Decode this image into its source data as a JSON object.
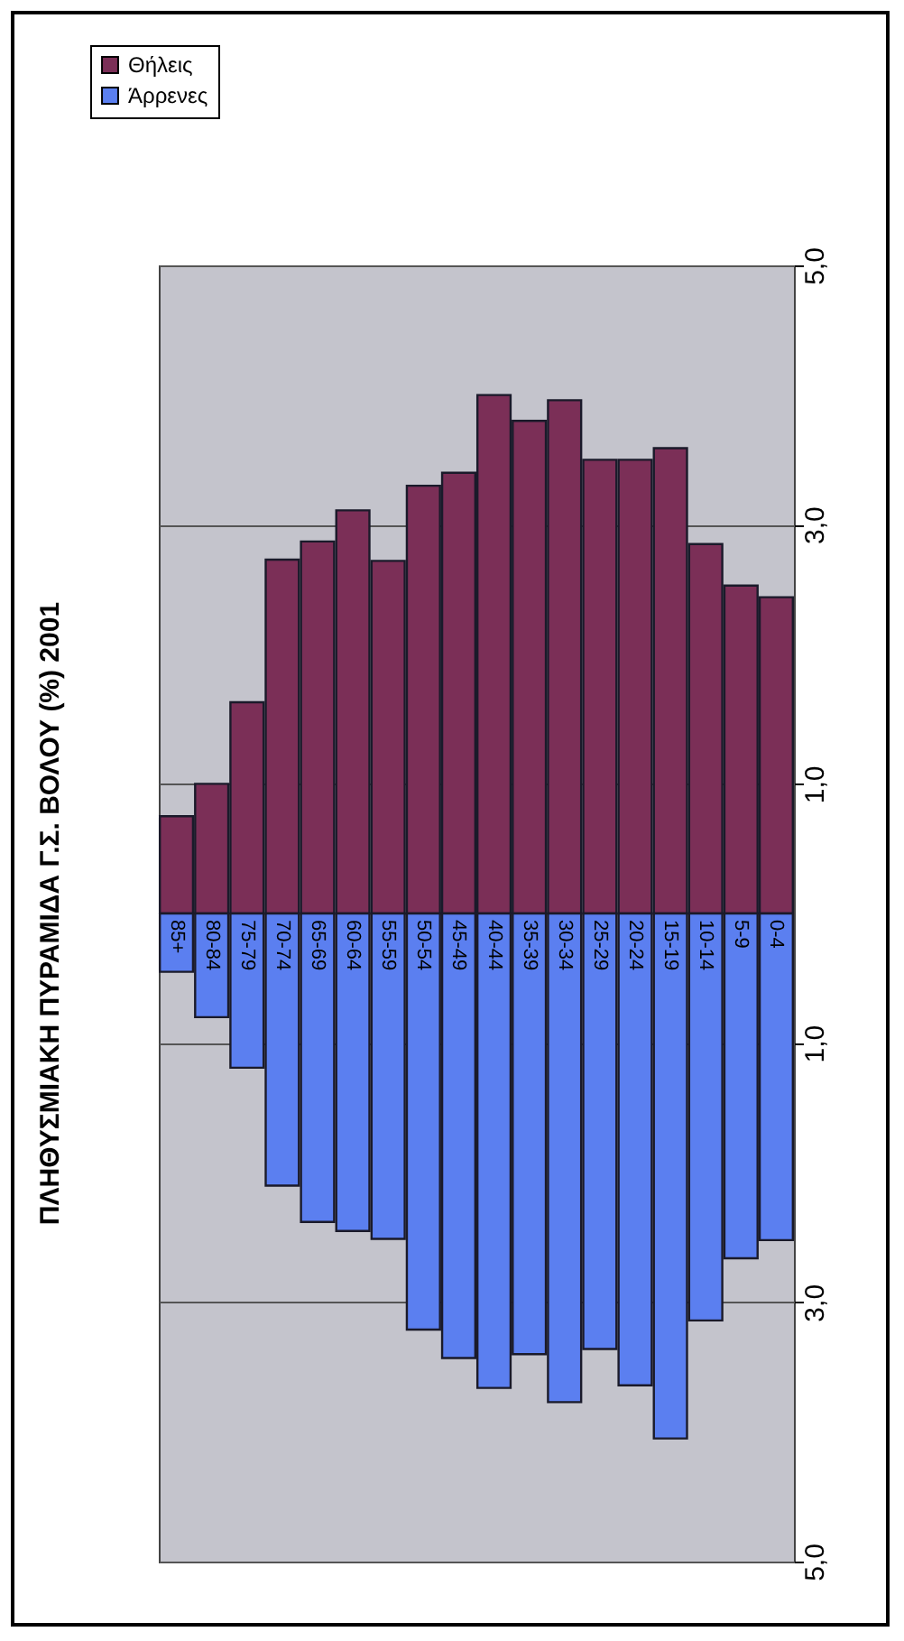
{
  "chart_data": {
    "type": "bar",
    "title": "ΠΛΗΘΥΣΜΙΑΚΗ ΠΥΡΑΜΙΔΑ Γ.Σ. ΒΟΛΟΥ (%) 2001",
    "categories": [
      "85+",
      "80-84",
      "75-79",
      "70-74",
      "65-69",
      "60-64",
      "55-59",
      "50-54",
      "45-49",
      "40-44",
      "35-39",
      "30-34",
      "25-29",
      "20-24",
      "15-19",
      "10-14",
      "5-9",
      "0-4"
    ],
    "series": [
      {
        "name": "Θήλεις",
        "color": "#7b2f57",
        "values": [
          0.75,
          1.0,
          1.63,
          2.73,
          2.87,
          3.11,
          2.72,
          3.3,
          3.4,
          4.0,
          3.8,
          3.96,
          3.5,
          3.5,
          3.59,
          2.85,
          2.53,
          2.44
        ]
      },
      {
        "name": "Άρρενες",
        "color": "#5b7ff0",
        "values": [
          -0.45,
          -0.8,
          -1.19,
          -2.1,
          -2.38,
          -2.45,
          -2.51,
          -3.21,
          -3.43,
          -3.66,
          -3.4,
          -3.77,
          -3.36,
          -3.64,
          -4.05,
          -3.14,
          -2.66,
          -2.52
        ]
      }
    ],
    "ylim": [
      -5,
      5
    ],
    "yticks": [
      {
        "value": -5,
        "label": "5,0"
      },
      {
        "value": -3,
        "label": "3,0"
      },
      {
        "value": -1,
        "label": "1,0"
      },
      {
        "value": 1,
        "label": "1,0"
      },
      {
        "value": 3,
        "label": "3,0"
      },
      {
        "value": 5,
        "label": "5,0"
      }
    ],
    "stacked": true,
    "grid": true,
    "legend": "top left"
  }
}
